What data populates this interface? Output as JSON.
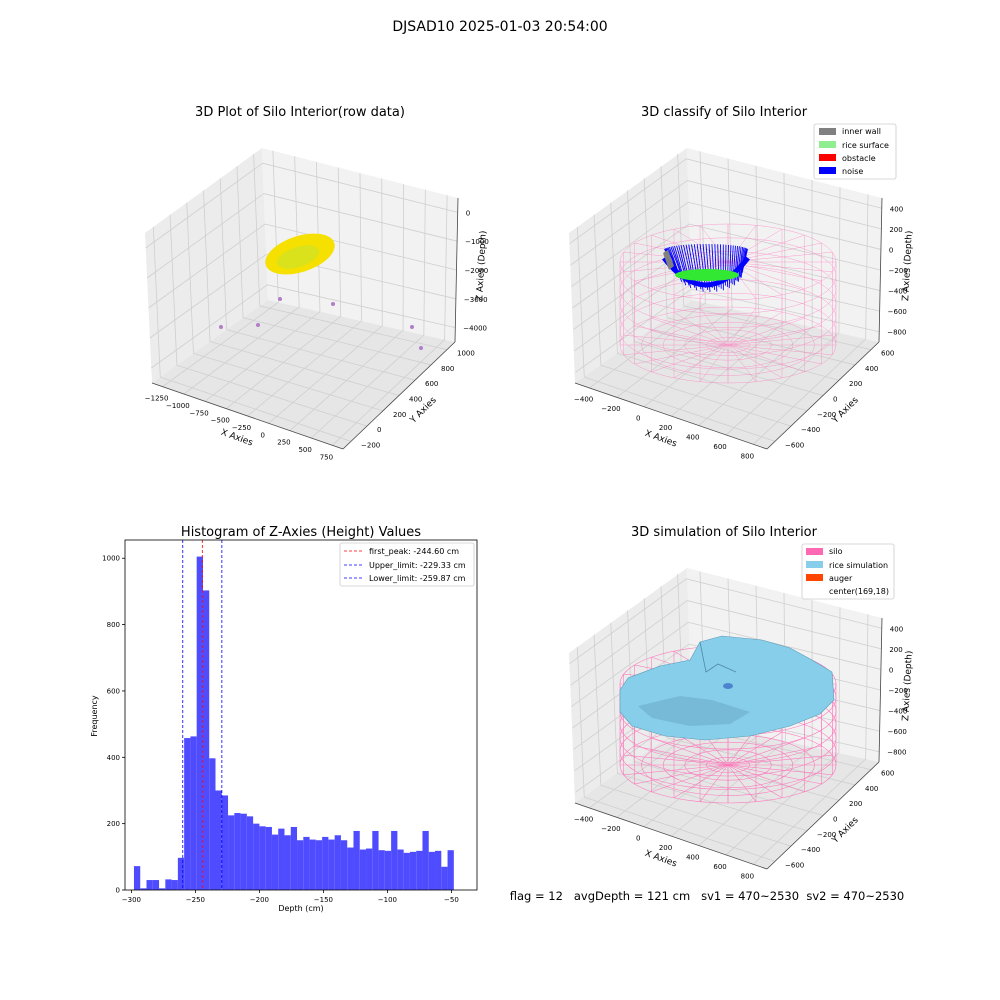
{
  "figure": {
    "suptitle": "DJSAD10 2025-01-03 20:54:00",
    "footer": "flag = 12   avgDepth = 121 cm   sv1 = 470~2530  sv2 = 470~2530"
  },
  "colors": {
    "pane": "#f2f2f2",
    "pane_dark": "#e8e8e8",
    "grid": "#cfcfcf",
    "histogram_bar": "#4f4cff",
    "inner_wall": "#808080",
    "rice_surface": "#90ee90",
    "obstacle": "#ff0000",
    "noise": "#0000ff",
    "silo": "#ff69b4",
    "rice_simulation": "#87ceeb",
    "auger": "#ff4500",
    "raw_points": "#f5e000",
    "outliers": "#b07fc7"
  },
  "chart_data": [
    {
      "type": "scatter",
      "title": "3D Plot of Silo Interior(row data)",
      "xlabel": "X Axies",
      "ylabel": "Y Axies",
      "zlabel": "Z Axies (Depth)",
      "x_ticks": [
        "−1250",
        "−1000",
        "−750",
        "−500",
        "−250",
        "0",
        "250",
        "500",
        "750"
      ],
      "y_ticks": [
        "−200",
        "0",
        "200",
        "400",
        "600",
        "800",
        "1000"
      ],
      "z_ticks": [
        "0",
        "−1000",
        "−2000",
        "−3000",
        "−4000"
      ]
    },
    {
      "type": "scatter",
      "title": "3D classify of Silo Interior",
      "xlabel": "X Axies",
      "ylabel": "Y Axies",
      "zlabel": "Z Axies (Depth)",
      "x_ticks": [
        "−400",
        "−200",
        "0",
        "200",
        "400",
        "600",
        "800"
      ],
      "y_ticks": [
        "−600",
        "−400",
        "−200",
        "0",
        "200",
        "400",
        "600"
      ],
      "z_ticks": [
        "400",
        "200",
        "0",
        "−200",
        "−400",
        "−600",
        "−800"
      ],
      "legend": [
        "inner wall",
        "rice surface",
        "obstacle",
        "noise"
      ]
    },
    {
      "type": "bar",
      "title": "Histogram of Z-Axies (Height) Values",
      "xlabel": "Depth (cm)",
      "ylabel": "Frequency",
      "xlim": [
        -305,
        -30
      ],
      "ylim": [
        0,
        1055
      ],
      "x_ticks": [
        -300,
        -250,
        -200,
        -150,
        -100,
        -50
      ],
      "x_tick_labels": [
        "−300",
        "−250",
        "−200",
        "−150",
        "−100",
        "−50"
      ],
      "y_ticks": [
        0,
        200,
        400,
        600,
        800,
        1000
      ],
      "bin_width": 4.9,
      "bins_start": [
        -298.0,
        -293.1,
        -288.2,
        -283.3,
        -278.4,
        -273.5,
        -268.6,
        -263.7,
        -258.8,
        -253.9,
        -249.0,
        -244.1,
        -239.2,
        -234.3,
        -229.4,
        -224.5,
        -219.6,
        -214.7,
        -209.8,
        -204.9,
        -200.0,
        -195.1,
        -190.2,
        -185.3,
        -180.4,
        -175.5,
        -170.6,
        -165.7,
        -160.8,
        -155.9,
        -151.0,
        -146.1,
        -141.2,
        -136.3,
        -131.4,
        -126.5,
        -121.6,
        -116.7,
        -111.8,
        -106.9,
        -102.0,
        -97.1,
        -92.2,
        -87.3,
        -82.4,
        -77.5,
        -72.6,
        -67.7,
        -62.8,
        -57.9,
        -53.0,
        -48.1
      ],
      "values": [
        72,
        5,
        30,
        30,
        5,
        32,
        30,
        97,
        458,
        463,
        1005,
        903,
        397,
        300,
        285,
        225,
        232,
        230,
        222,
        200,
        192,
        190,
        167,
        185,
        165,
        190,
        150,
        160,
        152,
        150,
        160,
        152,
        165,
        150,
        128,
        178,
        122,
        125,
        178,
        120,
        118,
        178,
        122,
        112,
        115,
        118,
        178,
        115,
        118,
        70,
        120,
        0
      ],
      "vlines": [
        {
          "label": "first_peak: -244.60 cm",
          "x": -244.6,
          "color": "#ff0000"
        },
        {
          "label": "Upper_limit: -229.33 cm",
          "x": -229.33,
          "color": "#0000ff"
        },
        {
          "label": "Lower_limit: -259.87 cm",
          "x": -259.87,
          "color": "#0000ff"
        }
      ],
      "legend_position": "top-right"
    },
    {
      "type": "scatter",
      "title": "3D simulation of Silo Interior",
      "xlabel": "X Axies",
      "ylabel": "Y Axies",
      "zlabel": "Z Axies (Depth)",
      "x_ticks": [
        "−400",
        "−200",
        "0",
        "200",
        "400",
        "600",
        "800"
      ],
      "y_ticks": [
        "−600",
        "−400",
        "−200",
        "0",
        "200",
        "400",
        "600"
      ],
      "z_ticks": [
        "400",
        "200",
        "0",
        "−200",
        "−400",
        "−600",
        "−800"
      ],
      "legend": [
        "silo",
        "rice simulation",
        "auger",
        "center(169,18)"
      ]
    }
  ]
}
